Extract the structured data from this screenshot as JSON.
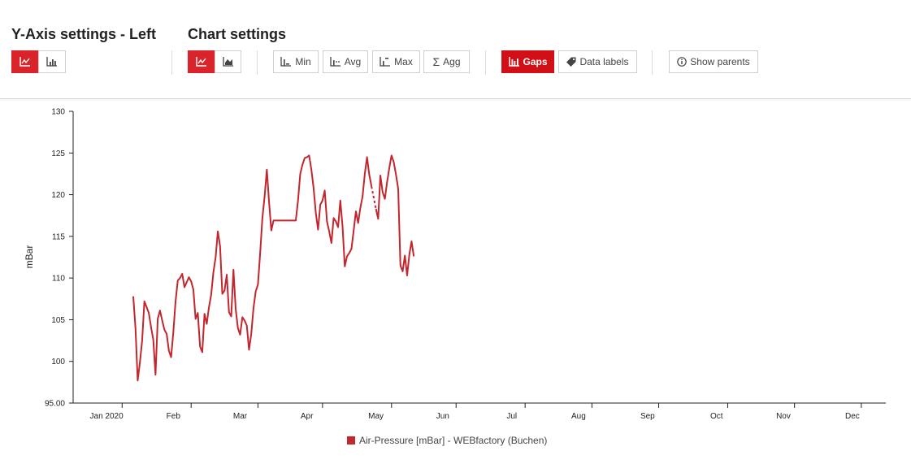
{
  "toolbar": {
    "yaxis_title": "Y-Axis settings - Left",
    "chart_title": "Chart settings",
    "min_label": "Min",
    "avg_label": "Avg",
    "max_label": "Max",
    "agg_label": "Agg",
    "gaps_label": "Gaps",
    "data_labels_label": "Data labels",
    "show_parents_label": "Show parents",
    "icons": {
      "yaxis_line": "line-chart-icon",
      "yaxis_bar": "bar-chart-icon",
      "chart_line": "line-chart-icon",
      "chart_area": "area-chart-icon",
      "min": "min-icon",
      "avg": "avg-icon",
      "max": "max-icon",
      "agg": "sigma-icon",
      "gaps": "gaps-icon",
      "data_labels": "tag-icon",
      "show_parents": "info-icon"
    },
    "colors": {
      "accent": "#d9242c",
      "gaps_active": "#d00f16"
    }
  },
  "chart_data": {
    "type": "line",
    "ylabel": "mBar",
    "xlabel": "",
    "ylim": [
      95,
      130
    ],
    "yticks": [
      "95.00",
      "100",
      "105",
      "110",
      "115",
      "120",
      "125",
      "130"
    ],
    "ytick_values": [
      95,
      100,
      105,
      110,
      115,
      120,
      125,
      130
    ],
    "x_range": [
      "2020-01-01",
      "2020-12-31"
    ],
    "month_labels": [
      "Jan 2020",
      "Feb",
      "Mar",
      "Apr",
      "May",
      "Jun",
      "Jul",
      "Aug",
      "Sep",
      "Oct",
      "Nov",
      "Dec"
    ],
    "month_label_dates": [
      "2020-01-16",
      "2020-02-15",
      "2020-03-16",
      "2020-04-15",
      "2020-05-16",
      "2020-06-15",
      "2020-07-16",
      "2020-08-15",
      "2020-09-15",
      "2020-10-16",
      "2020-11-15",
      "2020-12-16"
    ],
    "x_tick_dates": [
      "2020-01-23",
      "2020-02-23",
      "2020-03-24",
      "2020-04-22",
      "2020-05-23",
      "2020-06-21",
      "2020-07-22",
      "2020-08-21",
      "2020-09-20",
      "2020-10-21",
      "2020-11-20",
      "2020-12-20"
    ],
    "grid": false,
    "legend": "bottom-center",
    "series": [
      {
        "name": "Air-Pressure [mBar] - WEBfactory (Buchen)",
        "color": "#c4262e",
        "segments": [
          [
            [
              "2020-01-28",
              107.8
            ],
            [
              "2020-01-29",
              104
            ],
            [
              "2020-01-30",
              97.7
            ],
            [
              "2020-01-31",
              99.9
            ],
            [
              "2020-02-01",
              102.5
            ],
            [
              "2020-02-02",
              107.2
            ],
            [
              "2020-02-03",
              106.5
            ],
            [
              "2020-02-04",
              105.8
            ],
            [
              "2020-02-05",
              104.1
            ],
            [
              "2020-02-06",
              102.6
            ],
            [
              "2020-02-07",
              98.4
            ],
            [
              "2020-02-08",
              105.1
            ],
            [
              "2020-02-09",
              106.1
            ],
            [
              "2020-02-10",
              104.9
            ],
            [
              "2020-02-11",
              103.8
            ],
            [
              "2020-02-12",
              103.3
            ],
            [
              "2020-02-13",
              101.3
            ],
            [
              "2020-02-14",
              100.5
            ],
            [
              "2020-02-15",
              103.5
            ],
            [
              "2020-02-16",
              107.2
            ],
            [
              "2020-02-17",
              109.7
            ],
            [
              "2020-02-18",
              110
            ],
            [
              "2020-02-19",
              110.5
            ],
            [
              "2020-02-20",
              108.9
            ],
            [
              "2020-02-21",
              109.5
            ],
            [
              "2020-02-22",
              110.1
            ],
            [
              "2020-02-23",
              109.6
            ],
            [
              "2020-02-24",
              108.6
            ],
            [
              "2020-02-25",
              105.1
            ],
            [
              "2020-02-26",
              105.8
            ],
            [
              "2020-02-27",
              101.8
            ],
            [
              "2020-02-28",
              101.1
            ],
            [
              "2020-02-29",
              105.7
            ],
            [
              "2020-03-01",
              104.5
            ],
            [
              "2020-03-02",
              106.5
            ],
            [
              "2020-03-03",
              108
            ],
            [
              "2020-03-04",
              110.7
            ],
            [
              "2020-03-05",
              112.5
            ],
            [
              "2020-03-06",
              115.6
            ],
            [
              "2020-03-07",
              113.8
            ],
            [
              "2020-03-08",
              108.1
            ],
            [
              "2020-03-09",
              108.5
            ],
            [
              "2020-03-10",
              110.4
            ],
            [
              "2020-03-11",
              105.9
            ],
            [
              "2020-03-12",
              105.4
            ],
            [
              "2020-03-13",
              111
            ],
            [
              "2020-03-14",
              106.3
            ],
            [
              "2020-03-15",
              104
            ],
            [
              "2020-03-16",
              103.2
            ],
            [
              "2020-03-17",
              105.3
            ],
            [
              "2020-03-18",
              104.9
            ],
            [
              "2020-03-19",
              104.3
            ],
            [
              "2020-03-20",
              101.4
            ],
            [
              "2020-03-21",
              103.3
            ],
            [
              "2020-03-22",
              106.4
            ],
            [
              "2020-03-23",
              108.4
            ],
            [
              "2020-03-24",
              109.2
            ],
            [
              "2020-03-25",
              113
            ],
            [
              "2020-03-26",
              117.2
            ],
            [
              "2020-03-27",
              119.8
            ],
            [
              "2020-03-28",
              123
            ],
            [
              "2020-03-29",
              119.1
            ],
            [
              "2020-03-30",
              115.7
            ],
            [
              "2020-03-31",
              116.9
            ],
            [
              "2020-04-10",
              116.9
            ],
            [
              "2020-04-11",
              119.3
            ],
            [
              "2020-04-12",
              122.5
            ],
            [
              "2020-04-13",
              123.6
            ],
            [
              "2020-04-14",
              124.4
            ],
            [
              "2020-04-15",
              124.5
            ],
            [
              "2020-04-16",
              124.7
            ],
            [
              "2020-04-17",
              123
            ],
            [
              "2020-04-18",
              120.8
            ],
            [
              "2020-04-19",
              117.8
            ],
            [
              "2020-04-20",
              115.8
            ],
            [
              "2020-04-21",
              118.8
            ],
            [
              "2020-04-22",
              119.3
            ],
            [
              "2020-04-23",
              120.5
            ],
            [
              "2020-04-24",
              116.8
            ],
            [
              "2020-04-25",
              115.6
            ],
            [
              "2020-04-26",
              114.2
            ],
            [
              "2020-04-27",
              117.2
            ],
            [
              "2020-04-28",
              116.8
            ],
            [
              "2020-04-29",
              116.1
            ],
            [
              "2020-04-30",
              119.3
            ],
            [
              "2020-05-01",
              116.2
            ],
            [
              "2020-05-02",
              111.4
            ],
            [
              "2020-05-03",
              112.6
            ],
            [
              "2020-05-04",
              113
            ],
            [
              "2020-05-05",
              113.5
            ],
            [
              "2020-05-06",
              115.7
            ],
            [
              "2020-05-07",
              118
            ],
            [
              "2020-05-08",
              116.6
            ],
            [
              "2020-05-09",
              118.4
            ],
            [
              "2020-05-10",
              119.8
            ],
            [
              "2020-05-11",
              122.5
            ],
            [
              "2020-05-12",
              124.5
            ],
            [
              "2020-05-13",
              122.4
            ],
            [
              "2020-05-14",
              121
            ]
          ],
          [
            [
              "2020-05-16",
              118.3
            ],
            [
              "2020-05-17",
              117.1
            ],
            [
              "2020-05-18",
              122.3
            ],
            [
              "2020-05-19",
              120.3
            ],
            [
              "2020-05-20",
              119.5
            ],
            [
              "2020-05-21",
              121.5
            ],
            [
              "2020-05-22",
              123.2
            ],
            [
              "2020-05-23",
              124.7
            ],
            [
              "2020-05-24",
              123.9
            ],
            [
              "2020-05-25",
              122.4
            ],
            [
              "2020-05-26",
              120.7
            ],
            [
              "2020-05-27",
              111.5
            ],
            [
              "2020-05-28",
              110.8
            ],
            [
              "2020-05-29",
              112.7
            ],
            [
              "2020-05-30",
              110.3
            ],
            [
              "2020-05-31",
              112.8
            ],
            [
              "2020-06-01",
              114.4
            ],
            [
              "2020-06-02",
              112.6
            ]
          ]
        ]
      }
    ]
  }
}
